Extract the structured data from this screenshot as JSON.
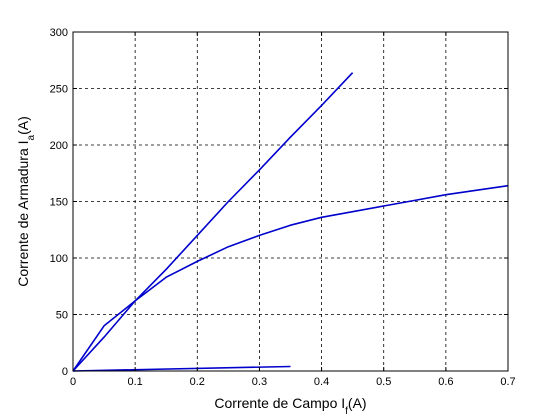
{
  "chart_data": {
    "type": "line",
    "title": "",
    "xlabel": "Corrente de Campo I",
    "xlabel_sub": "f",
    "xlabel_suffix": "(A)",
    "ylabel": "Corrente de Armadura I",
    "ylabel_sub": "a",
    "ylabel_suffix": "(A)",
    "xlim": [
      0,
      0.7
    ],
    "ylim": [
      0,
      300
    ],
    "xticks": [
      "0",
      "0.1",
      "0.2",
      "0.3",
      "0.4",
      "0.5",
      "0.6",
      "0.7"
    ],
    "yticks": [
      "0",
      "50",
      "100",
      "150",
      "200",
      "250",
      "300"
    ],
    "grid": true,
    "line_color": "#0000cc",
    "series": [
      {
        "x": [
          0,
          0.05,
          0.1,
          0.15,
          0.2,
          0.25,
          0.3,
          0.35,
          0.4,
          0.45
        ],
        "y": [
          0,
          30,
          62,
          90,
          120,
          150,
          178,
          207,
          235,
          264
        ]
      },
      {
        "x": [
          0,
          0.05,
          0.1,
          0.15,
          0.2,
          0.25,
          0.3,
          0.35,
          0.4,
          0.45,
          0.5,
          0.55,
          0.6,
          0.65,
          0.7
        ],
        "y": [
          0,
          40,
          62,
          83,
          97,
          110,
          120,
          129,
          136,
          141,
          146,
          151,
          156,
          160,
          164
        ]
      },
      {
        "x": [
          0,
          0.35
        ],
        "y": [
          0,
          4
        ]
      }
    ]
  }
}
